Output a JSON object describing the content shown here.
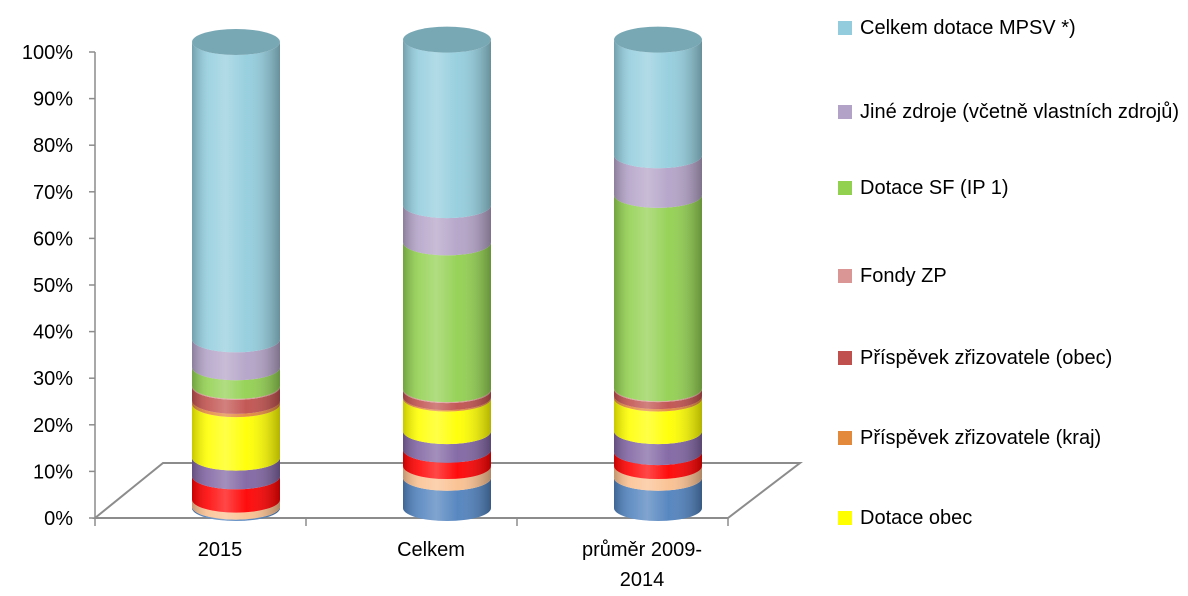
{
  "chart_data": {
    "type": "bar",
    "title": "",
    "xlabel": "",
    "ylabel": "",
    "ylim": [
      0,
      100
    ],
    "y_ticks": [
      "0%",
      "10%",
      "20%",
      "30%",
      "40%",
      "50%",
      "60%",
      "70%",
      "80%",
      "90%",
      "100%"
    ],
    "categories": [
      "2015",
      "Celkem",
      "průměr 2009-2014"
    ],
    "category_lines": [
      [
        "2015"
      ],
      [
        "Celkem"
      ],
      [
        "průměr 2009-",
        "2014"
      ]
    ],
    "stacking": "percent",
    "grid": false,
    "legend_position": "right",
    "series": [
      {
        "name": "",
        "color": "#4F81BD",
        "values": [
          0.3,
          6.5,
          6.5
        ]
      },
      {
        "name": "",
        "color": "#FAC090",
        "values": [
          1.5,
          2.5,
          2.5
        ]
      },
      {
        "name": "",
        "color": "#FF0000",
        "values": [
          5.0,
          3.5,
          3.0
        ]
      },
      {
        "name": "",
        "color": "#8064A2",
        "values": [
          4.0,
          4.0,
          4.5
        ]
      },
      {
        "name": "Dotace obec",
        "color": "#FFFF00",
        "values": [
          11.5,
          7.0,
          7.0
        ]
      },
      {
        "name": "Příspěvek zřizovatele (kraj)",
        "color": "#E3893B",
        "values": [
          0.7,
          0.3,
          0.5
        ]
      },
      {
        "name": "Příspěvek zřizovatele (obec)",
        "color": "#C0504D",
        "values": [
          3.0,
          1.5,
          1.5
        ]
      },
      {
        "name": "Fondy ZP",
        "color": "#D99694",
        "values": [
          0.2,
          0.2,
          0.2
        ]
      },
      {
        "name": "Dotace SF (IP 1)",
        "color": "#92D050",
        "values": [
          4.0,
          31.5,
          41.5
        ]
      },
      {
        "name": "Jiné zdroje (včetně vlastních zdrojů)",
        "color": "#B3A2C7",
        "values": [
          6.0,
          8.0,
          8.5
        ]
      },
      {
        "name": "Celkem dotace MPSV *)",
        "color": "#93CDDD",
        "values": [
          63.8,
          35.5,
          24.8
        ]
      }
    ]
  },
  "legend": {
    "items": [
      {
        "label": "Celkem dotace MPSV *)",
        "color": "#93CDDD"
      },
      {
        "label": "Jiné zdroje (včetně vlastních zdrojů)",
        "color": "#B3A2C7"
      },
      {
        "label": "Dotace SF (IP 1)",
        "color": "#92D050"
      },
      {
        "label": "Fondy ZP",
        "color": "#D99694"
      },
      {
        "label": "Příspěvek zřizovatele (obec)",
        "color": "#C0504D"
      },
      {
        "label": "Příspěvek zřizovatele (kraj)",
        "color": "#E3893B"
      },
      {
        "label": "Dotace obec",
        "color": "#FFFF00"
      }
    ]
  }
}
